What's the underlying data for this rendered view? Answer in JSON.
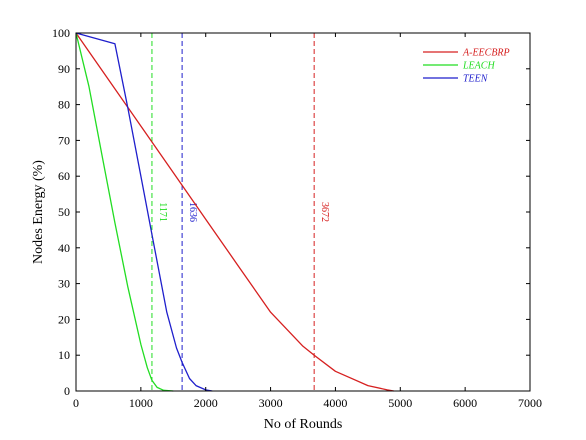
{
  "chart_data": {
    "type": "line",
    "xlabel": "No of Rounds",
    "ylabel": "Nodes Energy (%)",
    "xlim": [
      0,
      7000
    ],
    "ylim": [
      0,
      100
    ],
    "xticks": [
      "0",
      "1000",
      "2000",
      "3000",
      "4000",
      "5000",
      "6000",
      "7000"
    ],
    "yticks": [
      "0",
      "10",
      "20",
      "30",
      "40",
      "50",
      "60",
      "70",
      "80",
      "90",
      "100"
    ],
    "grid": false,
    "legend_position": "top-right",
    "series": [
      {
        "name": "A-EECBRP",
        "color": "#d62020",
        "x": [
          0,
          500,
          1000,
          1500,
          2000,
          2500,
          3000,
          3500,
          3672,
          4000,
          4500,
          4800,
          4900
        ],
        "y": [
          100,
          87,
          74,
          61,
          48,
          35,
          22,
          12.5,
          10,
          5.5,
          1.5,
          0.3,
          0
        ]
      },
      {
        "name": "LEACH",
        "color": "#22dd22",
        "x": [
          0,
          200,
          400,
          600,
          800,
          1000,
          1100,
          1171,
          1250,
          1350,
          1500
        ],
        "y": [
          100,
          85,
          66,
          47,
          29,
          13,
          6.5,
          3,
          1,
          0.2,
          0
        ]
      },
      {
        "name": "TEEN",
        "color": "#1f1fcc",
        "x": [
          0,
          600,
          800,
          1000,
          1200,
          1400,
          1550,
          1636,
          1750,
          1850,
          2000,
          2100
        ],
        "y": [
          100,
          97,
          79,
          60,
          41,
          22,
          12,
          8,
          3.5,
          1.5,
          0.3,
          0
        ]
      }
    ],
    "markers": [
      {
        "x": 1171,
        "label": "1171",
        "color": "#22dd22"
      },
      {
        "x": 1636,
        "label": "1636",
        "color": "#1f1fcc"
      },
      {
        "x": 3672,
        "label": "3672",
        "color": "#d62020"
      }
    ]
  }
}
